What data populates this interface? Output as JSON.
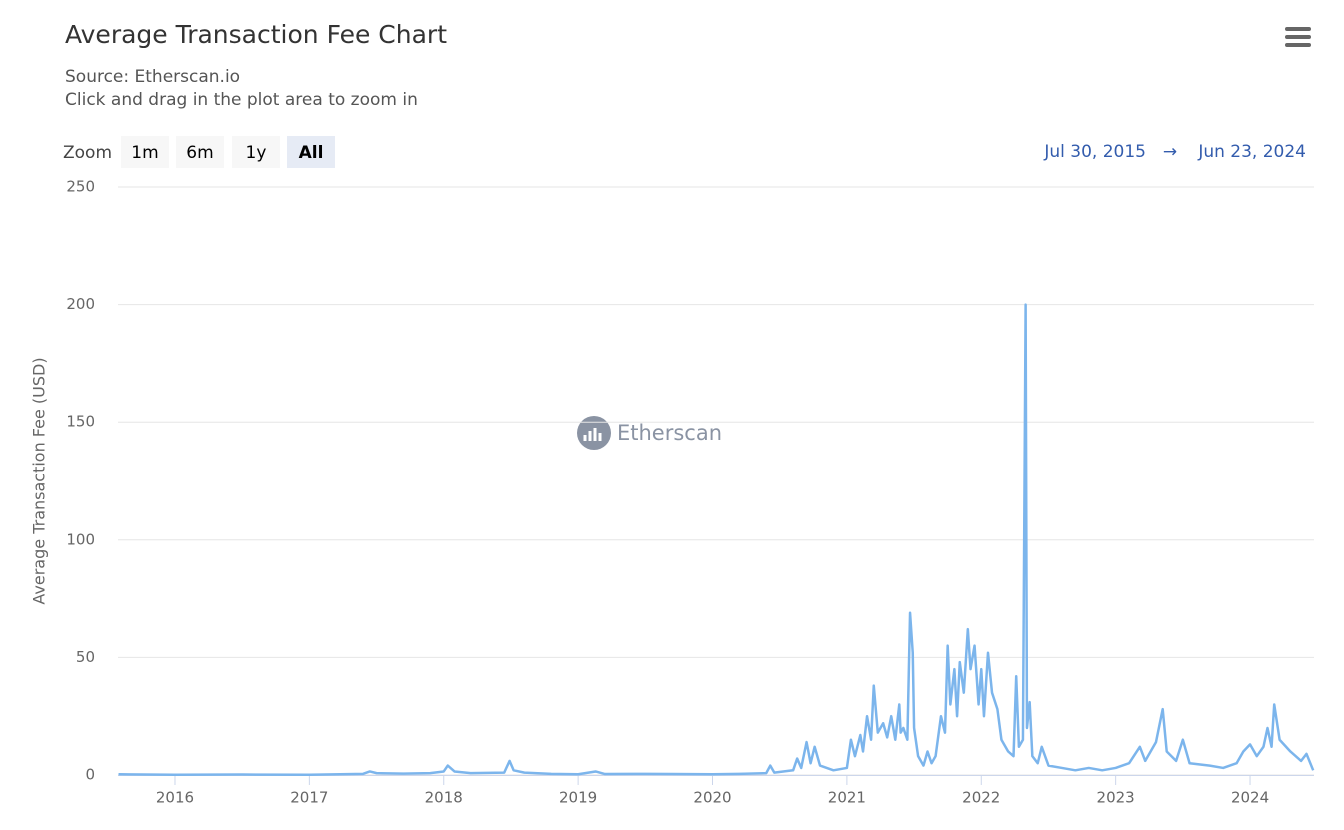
{
  "chart_data": {
    "type": "line",
    "title": "Average Transaction Fee Chart",
    "subtitle": [
      "Source: Etherscan.io",
      "Click and drag in the plot area to zoom in"
    ],
    "zoom_label": "Zoom",
    "zoom_buttons": [
      "1m",
      "6m",
      "1y",
      "All"
    ],
    "selected_zoom": "All",
    "range_from": "Jul 30, 2015",
    "range_arrow": "→",
    "range_to": "Jun 23, 2024",
    "watermark": "Etherscan",
    "y_label": "Average Transaction Fee (USD)",
    "grid": true,
    "xlim": [
      2015.576,
      2024.476
    ],
    "xticks": [
      2016,
      2017,
      2018,
      2019,
      2020,
      2021,
      2022,
      2023,
      2024
    ],
    "ylim": [
      0,
      250
    ],
    "yticks": [
      0,
      50,
      100,
      150,
      200,
      250
    ],
    "x": [
      2015.58,
      2016,
      2016.5,
      2017,
      2017.4,
      2017.45,
      2017.5,
      2017.7,
      2017.9,
      2018.0,
      2018.03,
      2018.08,
      2018.2,
      2018.45,
      2018.49,
      2018.52,
      2018.6,
      2018.8,
      2019.0,
      2019.13,
      2019.2,
      2019.5,
      2019.7,
      2020.0,
      2020.2,
      2020.4,
      2020.43,
      2020.46,
      2020.6,
      2020.63,
      2020.66,
      2020.7,
      2020.73,
      2020.76,
      2020.8,
      2020.9,
      2021.0,
      2021.03,
      2021.06,
      2021.1,
      2021.12,
      2021.15,
      2021.18,
      2021.2,
      2021.23,
      2021.27,
      2021.3,
      2021.33,
      2021.36,
      2021.39,
      2021.4,
      2021.42,
      2021.45,
      2021.47,
      2021.49,
      2021.5,
      2021.53,
      2021.57,
      2021.6,
      2021.63,
      2021.66,
      2021.7,
      2021.73,
      2021.75,
      2021.77,
      2021.8,
      2021.82,
      2021.84,
      2021.87,
      2021.9,
      2021.92,
      2021.95,
      2021.98,
      2022.0,
      2022.02,
      2022.05,
      2022.08,
      2022.12,
      2022.15,
      2022.2,
      2022.24,
      2022.26,
      2022.28,
      2022.31,
      2022.33,
      2022.34,
      2022.36,
      2022.38,
      2022.42,
      2022.45,
      2022.5,
      2022.6,
      2022.7,
      2022.8,
      2022.9,
      2023.0,
      2023.1,
      2023.18,
      2023.22,
      2023.3,
      2023.35,
      2023.38,
      2023.45,
      2023.5,
      2023.55,
      2023.7,
      2023.8,
      2023.9,
      2023.95,
      2024.0,
      2024.05,
      2024.1,
      2024.13,
      2024.16,
      2024.18,
      2024.22,
      2024.3,
      2024.38,
      2024.42,
      2024.47
    ],
    "series": [
      {
        "color": "#7cb5ec",
        "values": [
          0.3,
          0.1,
          0.2,
          0.1,
          0.5,
          1.5,
          0.8,
          0.6,
          0.8,
          1.5,
          4,
          1.5,
          0.8,
          1,
          6,
          2,
          1,
          0.5,
          0.3,
          1.5,
          0.4,
          0.5,
          0.4,
          0.3,
          0.5,
          0.8,
          4,
          1,
          2,
          7,
          3,
          14,
          5,
          12,
          4,
          2,
          3,
          15,
          8,
          17,
          10,
          25,
          15,
          38,
          18,
          22,
          16,
          25,
          15,
          30,
          18,
          20,
          15,
          69,
          52,
          20,
          8,
          4,
          10,
          5,
          8,
          25,
          18,
          55,
          30,
          45,
          25,
          48,
          35,
          62,
          45,
          55,
          30,
          45,
          25,
          52,
          35,
          28,
          15,
          10,
          8,
          42,
          12,
          15,
          200,
          20,
          31,
          8,
          5,
          12,
          4,
          3,
          2,
          3,
          2,
          3,
          5,
          12,
          6,
          14,
          28,
          10,
          6,
          15,
          5,
          4,
          3,
          5,
          10,
          13,
          8,
          12,
          20,
          12,
          30,
          15,
          10,
          6,
          9,
          2
        ]
      }
    ]
  }
}
